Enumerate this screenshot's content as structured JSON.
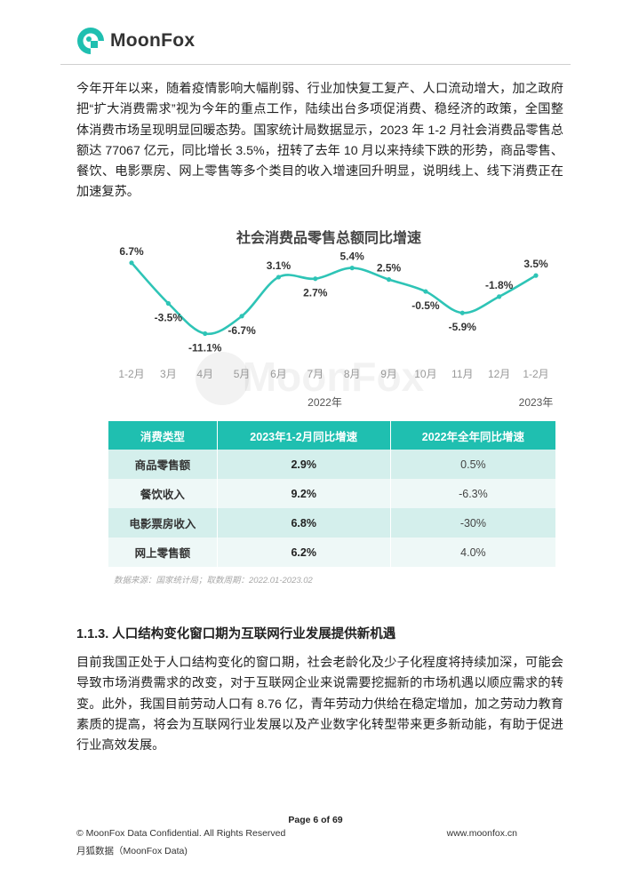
{
  "header": {
    "logo_text": "MoonFox"
  },
  "intro_paragraph": "今年开年以来，随着疫情影响大幅削弱、行业加快复工复产、人口流动增大，加之政府把“扩大消费需求”视为今年的重点工作，陆续出台多项促消费、稳经济的政策，全国整体消费市场呈现明显回暖态势。国家统计局数据显示，2023 年 1-2 月社会消费品零售总额达 77067 亿元，同比增长 3.5%，扭转了去年 10 月以来持续下跌的形势，商品零售、餐饮、电影票房、网上零售等多个类目的收入增速回升明显，说明线上、线下消费正在加速复苏。",
  "chart_data": {
    "type": "line",
    "title": "社会消费品零售总额同比增速",
    "categories": [
      "1-2月",
      "3月",
      "4月",
      "5月",
      "6月",
      "7月",
      "8月",
      "9月",
      "10月",
      "11月",
      "12月",
      "1-2月"
    ],
    "values": [
      6.7,
      -3.5,
      -11.1,
      -6.7,
      3.1,
      2.7,
      5.4,
      2.5,
      -0.5,
      -5.9,
      -1.8,
      3.5
    ],
    "value_labels": [
      "6.7%",
      "-3.5%",
      "-11.1%",
      "-6.7%",
      "3.1%",
      "2.7%",
      "5.4%",
      "2.5%",
      "-0.5%",
      "-5.9%",
      "-1.8%",
      "3.5%"
    ],
    "year_labels": [
      "2022年",
      "2023年"
    ],
    "ylim": [
      -13,
      8
    ],
    "line_color": "#2ec4b6",
    "grid": false,
    "watermark": "MoonFox"
  },
  "table": {
    "headers": [
      "消费类型",
      "2023年1-2月同比增速",
      "2022年全年同比增速"
    ],
    "rows": [
      [
        "商品零售额",
        "2.9%",
        "0.5%"
      ],
      [
        "餐饮收入",
        "9.2%",
        "-6.3%"
      ],
      [
        "电影票房收入",
        "6.8%",
        "-30%"
      ],
      [
        "网上零售额",
        "6.2%",
        "4.0%"
      ]
    ],
    "header_color": "#1fbfb0"
  },
  "source_note": "数据来源：国家统计局；取数周期：2022.01-2023.02",
  "section": {
    "title": "1.1.3. 人口结构变化窗口期为互联网行业发展提供新机遇",
    "paragraph": "目前我国正处于人口结构变化的窗口期，社会老龄化及少子化程度将持续加深，可能会导致市场消费需求的改变，对于互联网企业来说需要挖掘新的市场机遇以顺应需求的转变。此外，我国目前劳动人口有 8.76 亿，青年劳动力供给在稳定增加，加之劳动力教育素质的提高，将会为互联网行业发展以及产业数字化转型带来更多新动能，有助于促进行业高效发展。"
  },
  "footer": {
    "page": "Page  6 of 69",
    "copyright": "© MoonFox Data Confidential. All Rights Reserved",
    "website": "www.moonfox.cn",
    "company_cn": "月狐数据（MoonFox Data)"
  }
}
